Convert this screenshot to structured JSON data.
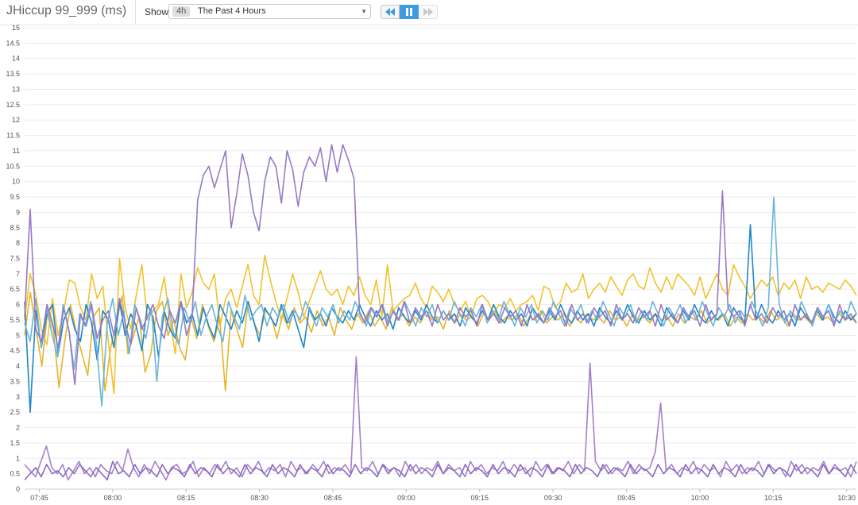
{
  "header": {
    "title": "JHiccup 99_999 (ms)",
    "show_label": "Show",
    "range_badge": "4h",
    "range_text": "The Past 4 Hours"
  },
  "controls": [
    "step-back",
    "pause",
    "step-forward"
  ],
  "colors": {
    "accent": "#3d9be0",
    "grid": "#ececec"
  },
  "chart_data": {
    "type": "line",
    "ylim": [
      0,
      15
    ],
    "y_ticks": [
      "0",
      "0.5",
      "1",
      "1.5",
      "2",
      "2.5",
      "3",
      "3.5",
      "4",
      "4.5",
      "5",
      "5.5",
      "6",
      "6.5",
      "7",
      "7.5",
      "8",
      "8.5",
      "9",
      "9.5",
      "10",
      "10.5",
      "11",
      "11.5",
      "12",
      "12.5",
      "13",
      "13.5",
      "14",
      "14.5",
      "15"
    ],
    "x_ticks": [
      "07:45",
      "08:00",
      "08:15",
      "08:30",
      "08:45",
      "09:00",
      "09:15",
      "09:30",
      "09:45",
      "10:00",
      "10:15",
      "10:30"
    ],
    "x_range": [
      "07:42",
      "10:32"
    ],
    "grid": true,
    "series": [
      {
        "color": "#f2c22e",
        "values": [
          5.5,
          7.0,
          6.3,
          5.2,
          4.7,
          6.2,
          5.0,
          5.8,
          6.8,
          6.7,
          5.9,
          5.5,
          7.0,
          6.2,
          6.6,
          4.8,
          3.1,
          7.5,
          5.9,
          5.2,
          6.3,
          7.3,
          5.5,
          5.8,
          6.0,
          6.9,
          5.5,
          4.4,
          7.0,
          5.9,
          6.4,
          7.2,
          6.7,
          6.5,
          7.0,
          5.3,
          6.2,
          6.5,
          5.9,
          6.6,
          7.3,
          6.3,
          6.0,
          7.6,
          6.8,
          6.1,
          5.5,
          6.2,
          7.0,
          6.4,
          5.6,
          6.1,
          6.6,
          7.1,
          6.5,
          6.3,
          6.5,
          6.0,
          6.6,
          6.3,
          6.9,
          6.3,
          6.0,
          6.8,
          5.6,
          7.3,
          5.8,
          6.0,
          6.2,
          6.3,
          6.7,
          6.2,
          5.9,
          6.6,
          6.4,
          6.1,
          6.5,
          6.0,
          5.8,
          6.1,
          5.6,
          6.2,
          6.3,
          6.1,
          5.7,
          6.0,
          5.9,
          6.2,
          5.8,
          6.0,
          6.1,
          6.3,
          5.8,
          6.6,
          6.5,
          5.9,
          6.1,
          6.7,
          6.4,
          6.5,
          7.0,
          6.2,
          6.5,
          6.7,
          6.4,
          6.9,
          6.6,
          6.3,
          6.8,
          7.0,
          6.6,
          6.5,
          7.2,
          6.7,
          6.4,
          6.9,
          6.5,
          7.0,
          6.8,
          6.6,
          6.3,
          6.9,
          6.2,
          6.6,
          7.0,
          6.5,
          6.3,
          7.3,
          6.9,
          6.6,
          6.2,
          6.5,
          6.8,
          6.6,
          6.9,
          6.3,
          6.7,
          6.5,
          6.8,
          6.2,
          6.9,
          6.5,
          6.6,
          6.4,
          6.7,
          6.6,
          6.5,
          6.8,
          6.6,
          6.3
        ]
      },
      {
        "color": "#e6b52a",
        "values": [
          5.0,
          6.4,
          5.2,
          4.0,
          5.8,
          5.2,
          3.3,
          4.8,
          6.0,
          5.1,
          4.4,
          3.7,
          5.6,
          5.9,
          3.2,
          4.6,
          5.4,
          6.3,
          4.4,
          5.0,
          5.6,
          3.8,
          4.4,
          5.8,
          6.1,
          5.0,
          5.5,
          4.6,
          4.2,
          5.6,
          4.9,
          6.0,
          5.3,
          4.8,
          5.6,
          3.2,
          5.8,
          5.2,
          4.6,
          6.1,
          5.4,
          5.0,
          5.8,
          5.6,
          4.9,
          5.7,
          5.2,
          5.9,
          5.4,
          5.6,
          5.1,
          5.8,
          5.3,
          5.6,
          5.0,
          5.9,
          5.5,
          5.2,
          5.7,
          5.4,
          5.8,
          5.3,
          5.6,
          5.2,
          5.9,
          5.5,
          5.7,
          5.3,
          5.6,
          5.4,
          5.8,
          5.5,
          5.6,
          5.2,
          5.8,
          5.4,
          5.7,
          5.5,
          5.6,
          5.3,
          5.7,
          5.5,
          5.8,
          5.4,
          5.6,
          5.5,
          5.7,
          5.3,
          5.6,
          5.5,
          5.8,
          5.4,
          5.6,
          5.5,
          5.7,
          5.3,
          5.6,
          5.4,
          5.7,
          5.5,
          5.6,
          5.4,
          5.8,
          5.5,
          5.6,
          5.3,
          5.7,
          5.5,
          5.6,
          5.4,
          5.7,
          5.5,
          5.6,
          5.3,
          5.7,
          5.4,
          5.6,
          5.5,
          5.8,
          5.4,
          5.6,
          5.5,
          5.7,
          5.3,
          5.6,
          5.4,
          5.7,
          5.5,
          5.6,
          5.4,
          5.8,
          5.5,
          5.6,
          5.3,
          5.7,
          5.5,
          5.6,
          5.4,
          5.7,
          5.5,
          5.6,
          5.4,
          5.7,
          5.5,
          5.6,
          5.4
        ]
      },
      {
        "color": "#1f86c7",
        "values": [
          6.1,
          2.5,
          5.8,
          4.6,
          5.7,
          6.0,
          4.4,
          5.5,
          5.9,
          5.2,
          4.8,
          6.0,
          5.4,
          4.2,
          5.8,
          5.5,
          4.6,
          6.1,
          5.0,
          5.7,
          5.3,
          4.5,
          6.0,
          5.6,
          4.3,
          5.8,
          5.2,
          4.9,
          6.1,
          5.4,
          5.7,
          5.0,
          5.9,
          5.3,
          4.9,
          6.0,
          5.6,
          5.2,
          5.8,
          5.4,
          6.1,
          5.5,
          4.8,
          5.9,
          5.6,
          5.3,
          6.0,
          5.4,
          5.8,
          5.2,
          4.6,
          5.9,
          5.5,
          5.7,
          5.3,
          5.9,
          5.6,
          5.4,
          5.8,
          5.5,
          6.0,
          5.6,
          5.3,
          5.8,
          5.5,
          5.7,
          5.2,
          5.9,
          5.6,
          5.4,
          5.8,
          5.5,
          6.0,
          5.6,
          5.4,
          5.8,
          5.5,
          5.7,
          5.3,
          5.9,
          5.6,
          5.4,
          5.8,
          5.5,
          6.0,
          5.6,
          5.4,
          5.8,
          5.5,
          5.7,
          5.3,
          5.9,
          5.6,
          5.4,
          5.8,
          5.5,
          6.0,
          5.6,
          5.4,
          5.8,
          5.5,
          5.7,
          5.3,
          5.9,
          5.6,
          5.4,
          5.8,
          5.5,
          6.0,
          5.6,
          5.4,
          5.8,
          5.5,
          5.7,
          5.3,
          5.9,
          5.6,
          5.4,
          5.8,
          5.5,
          6.0,
          5.6,
          5.4,
          5.8,
          5.5,
          5.7,
          5.3,
          5.9,
          5.6,
          5.4,
          8.6,
          5.5,
          6.0,
          5.6,
          5.4,
          5.8,
          5.5,
          5.7,
          5.3,
          5.9,
          5.6,
          5.4,
          5.8,
          5.5,
          6.0,
          5.6,
          5.4,
          5.8,
          5.5,
          5.7
        ]
      },
      {
        "color": "#6cb4d8",
        "values": [
          5.4,
          4.8,
          6.2,
          4.6,
          5.9,
          5.0,
          4.3,
          6.0,
          5.2,
          3.9,
          5.7,
          5.3,
          6.1,
          4.8,
          2.7,
          5.4,
          6.2,
          5.0,
          5.8,
          4.4,
          6.0,
          5.5,
          4.9,
          5.9,
          3.5,
          5.6,
          6.2,
          5.1,
          4.7,
          5.9,
          5.4,
          6.1,
          5.0,
          5.6,
          6.0,
          5.3,
          4.8,
          6.1,
          5.6,
          5.2,
          6.3,
          5.5,
          5.8,
          6.0,
          5.3,
          5.9,
          5.6,
          6.0,
          5.4,
          5.8,
          5.5,
          6.1,
          5.7,
          5.3,
          5.9,
          5.6,
          6.0,
          5.4,
          5.8,
          5.5,
          6.1,
          5.7,
          5.3,
          5.9,
          5.6,
          6.0,
          5.4,
          5.8,
          5.5,
          6.1,
          5.7,
          5.3,
          5.9,
          5.6,
          6.0,
          5.4,
          5.8,
          5.5,
          6.1,
          5.7,
          5.3,
          5.9,
          5.6,
          6.0,
          5.4,
          5.8,
          5.5,
          6.1,
          5.7,
          5.3,
          5.9,
          5.6,
          6.0,
          5.4,
          5.8,
          5.5,
          6.1,
          5.7,
          5.3,
          5.9,
          5.6,
          6.0,
          5.4,
          5.8,
          5.5,
          6.1,
          5.7,
          5.3,
          5.9,
          5.6,
          6.0,
          5.4,
          5.8,
          5.5,
          6.1,
          5.7,
          5.3,
          5.9,
          5.6,
          6.0,
          5.4,
          5.8,
          5.5,
          6.1,
          5.7,
          5.3,
          5.9,
          5.6,
          6.0,
          5.4,
          5.8,
          5.5,
          6.1,
          5.7,
          5.3,
          5.9,
          9.5,
          6.0,
          5.4,
          5.8,
          5.5,
          6.1,
          5.7,
          5.3,
          5.9,
          5.6,
          6.0,
          5.4,
          5.8,
          5.5,
          6.1,
          5.7
        ]
      },
      {
        "color": "#9879c4",
        "values": [
          5.6,
          9.1,
          5.2,
          4.8,
          6.0,
          5.4,
          4.6,
          5.9,
          5.1,
          3.4,
          5.7,
          5.3,
          6.0,
          4.9,
          5.5,
          5.8,
          5.0,
          6.2,
          5.4,
          4.7,
          5.9,
          5.2,
          5.6,
          6.0,
          5.3,
          4.9,
          5.8,
          5.4,
          6.1,
          5.0,
          5.6,
          9.4,
          10.2,
          10.5,
          9.8,
          10.4,
          11.0,
          8.5,
          9.6,
          10.9,
          10.2,
          9.0,
          8.4,
          10.0,
          10.8,
          10.5,
          9.3,
          11.0,
          10.4,
          9.2,
          10.3,
          10.8,
          10.5,
          11.1,
          10.0,
          11.2,
          10.3,
          11.2,
          10.7,
          10.1,
          5.7,
          5.4,
          5.9,
          5.6,
          6.0,
          5.3,
          5.8,
          5.5,
          6.1,
          5.4,
          5.9,
          5.6,
          5.8,
          5.3,
          6.0,
          5.5,
          5.7,
          5.4,
          5.9,
          5.6,
          5.8,
          5.3,
          6.0,
          5.5,
          5.7,
          5.4,
          5.9,
          5.6,
          5.8,
          5.3,
          6.0,
          5.5,
          5.7,
          5.4,
          5.9,
          5.6,
          5.8,
          5.3,
          6.0,
          5.5,
          5.7,
          5.4,
          5.9,
          5.6,
          5.8,
          5.3,
          6.0,
          5.5,
          5.7,
          5.4,
          5.9,
          5.6,
          5.8,
          5.3,
          6.0,
          5.5,
          5.7,
          5.4,
          5.9,
          5.6,
          5.8,
          5.3,
          6.0,
          5.5,
          5.7,
          9.7,
          5.9,
          5.6,
          5.8,
          5.3,
          6.0,
          5.5,
          5.7,
          5.4,
          5.9,
          5.6,
          5.8,
          5.3,
          6.0,
          5.5,
          5.7,
          5.4,
          5.9,
          5.6,
          5.8,
          5.3,
          6.0,
          5.5,
          5.7,
          5.4
        ]
      },
      {
        "color": "#a481c9",
        "values": [
          0.8,
          0.6,
          0.4,
          0.9,
          1.4,
          0.7,
          0.5,
          0.8,
          0.3,
          0.6,
          0.9,
          0.5,
          0.7,
          0.4,
          0.8,
          0.6,
          0.5,
          0.9,
          0.6,
          1.3,
          0.7,
          0.4,
          0.8,
          0.5,
          0.9,
          0.6,
          0.3,
          0.7,
          0.8,
          0.5,
          0.6,
          0.9,
          0.4,
          0.7,
          0.5,
          0.8,
          0.6,
          0.9,
          0.5,
          0.7,
          0.4,
          0.8,
          0.6,
          0.9,
          0.5,
          0.7,
          0.6,
          0.8,
          0.4,
          0.9,
          0.6,
          0.7,
          0.5,
          0.8,
          0.6,
          0.9,
          0.5,
          0.7,
          0.6,
          0.8,
          0.5,
          4.3,
          0.7,
          0.6,
          0.9,
          0.5,
          0.8,
          0.6,
          0.7,
          0.4,
          0.9,
          0.6,
          0.8,
          0.5,
          0.7,
          0.6,
          0.9,
          0.5,
          0.8,
          0.6,
          0.7,
          0.4,
          0.9,
          0.6,
          0.8,
          0.5,
          0.7,
          0.6,
          0.9,
          0.5,
          0.8,
          0.6,
          0.7,
          0.4,
          0.9,
          0.6,
          0.8,
          0.5,
          0.7,
          0.6,
          0.9,
          0.5,
          0.8,
          0.6,
          4.1,
          0.9,
          0.6,
          0.8,
          0.5,
          0.7,
          0.6,
          0.9,
          0.5,
          0.8,
          0.6,
          0.7,
          1.2,
          2.8,
          0.6,
          0.8,
          0.5,
          0.7,
          0.6,
          0.9,
          0.5,
          0.8,
          0.6,
          0.7,
          0.4,
          0.9,
          0.6,
          0.8,
          0.5,
          0.7,
          0.6,
          0.9,
          0.5,
          0.8,
          0.6,
          0.7,
          0.4,
          0.9,
          0.6,
          0.8,
          0.5,
          0.7,
          0.6,
          0.9,
          0.5,
          0.8,
          0.6,
          0.7,
          0.4,
          0.9
        ]
      },
      {
        "color": "#8c6bbf",
        "values": [
          0.3,
          0.5,
          0.7,
          0.4,
          0.8,
          0.5,
          0.6,
          0.4,
          0.7,
          0.5,
          0.8,
          0.6,
          0.4,
          0.7,
          0.5,
          0.3,
          0.9,
          0.5,
          0.6,
          0.4,
          0.8,
          0.5,
          0.7,
          0.6,
          0.4,
          0.8,
          0.5,
          0.7,
          0.6,
          0.4,
          0.8,
          0.5,
          0.7,
          0.6,
          0.4,
          0.8,
          0.5,
          0.7,
          0.6,
          0.4,
          0.8,
          0.5,
          0.7,
          0.6,
          0.4,
          0.8,
          0.5,
          0.7,
          0.6,
          0.4,
          0.8,
          0.5,
          0.7,
          0.6,
          0.4,
          0.8,
          0.5,
          0.7,
          0.6,
          0.4,
          0.8,
          0.5,
          0.7,
          0.6,
          0.4,
          0.8,
          0.5,
          0.7,
          0.6,
          0.4,
          0.8,
          0.5,
          0.7,
          0.6,
          0.4,
          0.8,
          0.5,
          0.7,
          0.6,
          0.4,
          0.8,
          0.5,
          0.7,
          0.6,
          0.4,
          0.8,
          0.5,
          0.7,
          0.6,
          0.4,
          0.8,
          0.5,
          0.7,
          0.6,
          0.4,
          0.8,
          0.5,
          0.7,
          0.6,
          0.4,
          0.8,
          0.5,
          0.7,
          0.6,
          0.4,
          0.8,
          0.5,
          0.7,
          0.6,
          0.4,
          0.8,
          0.5,
          0.7,
          0.6,
          0.4,
          0.8,
          0.5,
          0.7,
          0.6,
          0.4,
          0.8,
          0.5,
          0.7,
          0.6,
          0.4,
          0.8,
          0.5,
          0.7,
          0.6,
          0.4,
          0.8,
          0.5,
          0.7,
          0.6,
          0.4,
          0.8,
          0.5,
          0.7,
          0.6,
          0.4,
          0.8,
          0.5,
          0.7,
          0.6,
          0.4,
          0.8,
          0.5,
          0.7,
          0.6,
          0.4,
          0.8,
          0.5
        ]
      }
    ]
  }
}
